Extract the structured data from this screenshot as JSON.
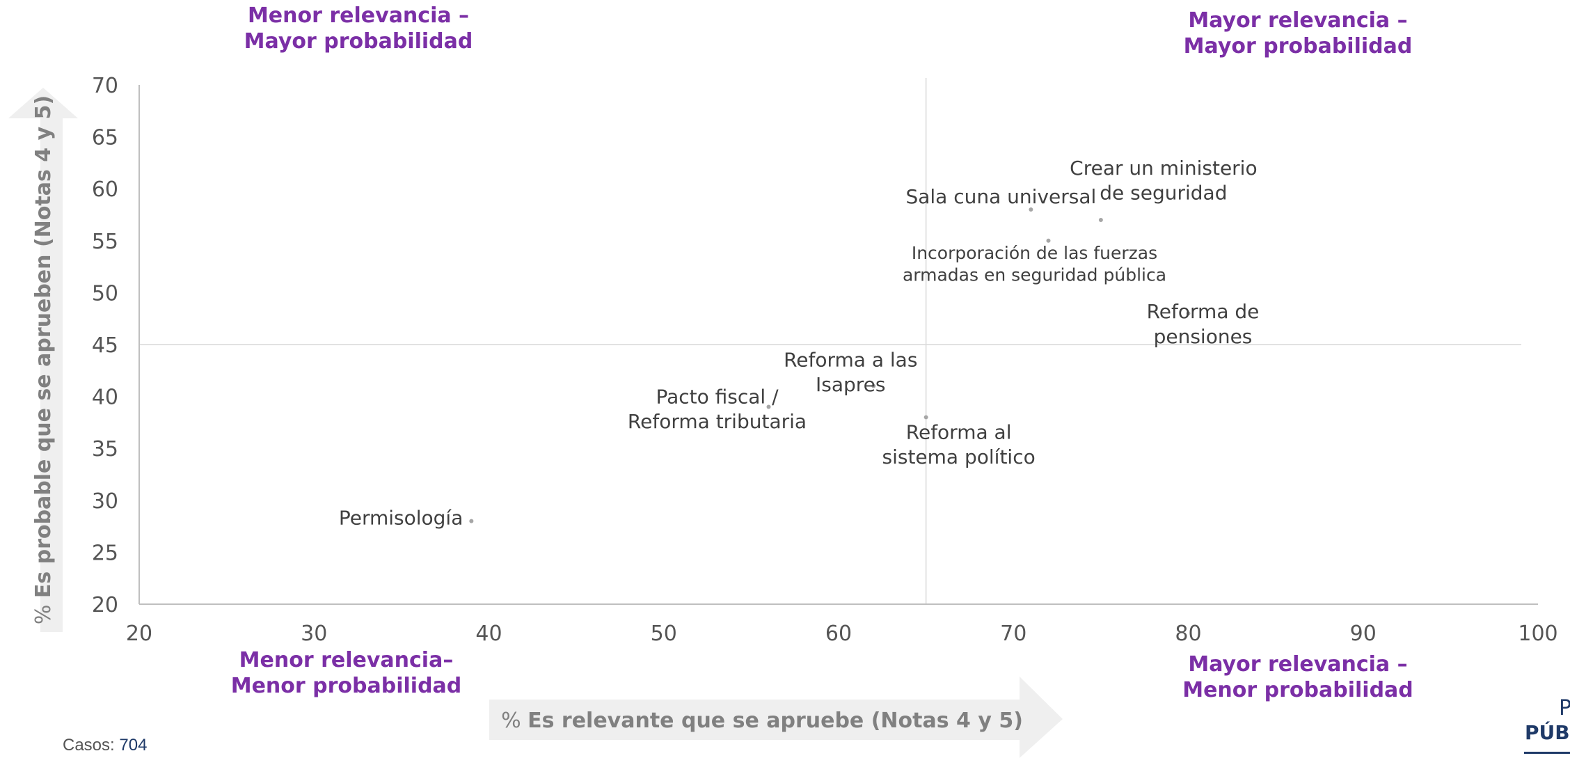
{
  "chart_data": {
    "type": "scatter",
    "xlabel_prefix": "%",
    "xlabel": "Es relevante que se apruebe (Notas 4 y 5)",
    "ylabel_prefix": "%",
    "ylabel": "Es probable que se aprueben (Notas 4 y 5)",
    "xlim": [
      20,
      100
    ],
    "ylim": [
      20,
      70
    ],
    "xticks": [
      20,
      30,
      40,
      50,
      60,
      70,
      80,
      90,
      100
    ],
    "yticks": [
      20,
      25,
      30,
      35,
      40,
      45,
      50,
      55,
      60,
      65,
      70
    ],
    "reference_lines": {
      "x": 65,
      "y": 45
    },
    "points": [
      {
        "label": "Permisología",
        "x": 39,
        "y": 28
      },
      {
        "label": "Pacto fiscal / Reforma tributaria",
        "x": 56,
        "y": 39
      },
      {
        "label": "Reforma a las Isapres",
        "x": 62,
        "y": 41
      },
      {
        "label": "Reforma al sistema político",
        "x": 65,
        "y": 38
      },
      {
        "label": "Sala cuna universal",
        "x": 71,
        "y": 58
      },
      {
        "label": "Incorporación de las fuerzas armadas en seguridad pública",
        "x": 72,
        "y": 55
      },
      {
        "label": "Crear un ministerio de seguridad",
        "x": 75,
        "y": 57
      },
      {
        "label": "Reforma de pensiones",
        "x": 80,
        "y": 48
      }
    ],
    "quadrants": {
      "top_left": "Menor relevancia – Mayor probabilidad",
      "top_right": "Mayor relevancia – Mayor probabilidad",
      "bottom_left": "Menor relevancia– Menor probabilidad",
      "bottom_right": "Mayor relevancia – Menor probabilidad"
    },
    "colors": {
      "quadrant_text": "#7b2fa6",
      "axis_text": "#555555",
      "label_text": "#404040",
      "point": "#a6a6a6",
      "arrow": "#efefef",
      "axis_title": "#808080"
    }
  },
  "quadrants": {
    "top_left_line1": "Menor relevancia –",
    "top_left_line2": "Mayor probabilidad",
    "top_right_line1": "Mayor relevancia –",
    "top_right_line2": "Mayor probabilidad",
    "bottom_left_line1": "Menor relevancia–",
    "bottom_left_line2": "Menor probabilidad",
    "bottom_right_line1": "Mayor relevancia –",
    "bottom_right_line2": "Menor probabilidad"
  },
  "footer": {
    "cases_label": "Casos:",
    "cases_value": "704"
  },
  "logo": {
    "line1": "P",
    "line2": "PÚB"
  }
}
